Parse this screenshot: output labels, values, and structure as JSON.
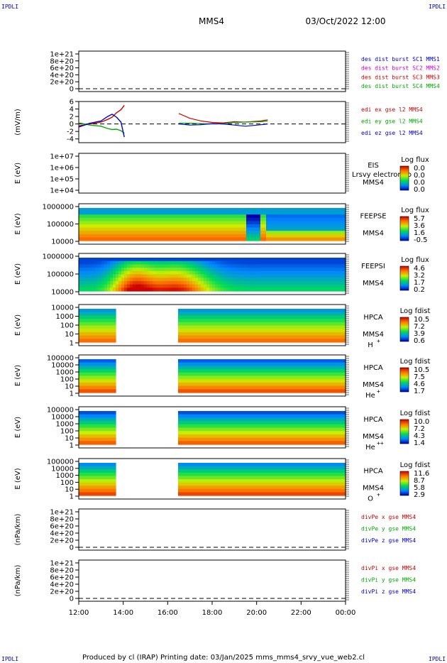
{
  "header": {
    "spacecraft": "MMS4",
    "datetime": "03/Oct/2022 12:00"
  },
  "corners": {
    "tl": "IPDLI",
    "tr": "IPDLI",
    "bl": "IPDLI",
    "br": "IPDLI"
  },
  "footer": {
    "text": "Produced by cl (IRAP)   Printing date: 03/Jan/2025   mms_mms4_srvy_vue_web2.cl"
  },
  "colors": {
    "mms1": "#0000cc",
    "mms2": "#cc00cc",
    "mms3": "#cc0000",
    "mms4": "#00aa00",
    "x": "#cc0000",
    "y": "#00aa00",
    "z": "#0000cc"
  },
  "x_axis": {
    "ticks": [
      "12:00",
      "14:00",
      "16:00",
      "18:00",
      "20:00",
      "22:00",
      "00:00"
    ],
    "range_hours": [
      12,
      24
    ]
  },
  "data_gap_hours": [
    13.72,
    16.42
  ],
  "chart_data": [
    {
      "id": "panel1",
      "type": "line",
      "yticks": [
        "1e+21",
        "8e+20",
        "6e+20",
        "4e+20",
        "2e+20",
        "0"
      ],
      "legend": [
        "des dist burst SC1 MMS1",
        "des dist burst SC2 MMS2",
        "des dist burst SC3 MMS3",
        "des dist burst SC4 MMS4"
      ],
      "series": []
    },
    {
      "id": "panel2",
      "type": "line",
      "ylabel": "(mV/m)",
      "ylim": [
        -5,
        6
      ],
      "yticks": [
        "6",
        "4",
        "2",
        "0",
        "-2",
        "-4"
      ],
      "legend": [
        "edi ex gse l2 MMS4",
        "edi ey gse l2 MMS4",
        "edi ez gse l2 MMS4"
      ],
      "series": [
        {
          "name": "edi ex gse l2 MMS4",
          "x": [
            12.0,
            12.5,
            13.0,
            13.3,
            13.5,
            13.7,
            13.9,
            14.05,
            16.5,
            17.0,
            17.5,
            18.0,
            18.5,
            19.0,
            19.5,
            20.2,
            20.5
          ],
          "y": [
            -0.5,
            0.0,
            0.5,
            1.2,
            1.8,
            3.0,
            3.8,
            5.0,
            2.8,
            1.5,
            0.8,
            0.4,
            0.3,
            0.6,
            0.5,
            0.8,
            1.1
          ]
        },
        {
          "name": "edi ey gse l2 MMS4",
          "x": [
            12.0,
            12.5,
            13.0,
            13.3,
            13.5,
            13.7,
            13.9,
            14.05,
            16.5,
            17.0,
            17.5,
            18.0,
            18.5,
            19.0,
            19.5,
            20.2,
            20.5
          ],
          "y": [
            0.3,
            -0.3,
            -0.6,
            -1.2,
            -1.5,
            -1.4,
            -1.8,
            -2.5,
            0.2,
            0.2,
            0.1,
            0.0,
            0.1,
            0.4,
            0.5,
            0.6,
            0.8
          ]
        },
        {
          "name": "edi ez gse l2 MMS4",
          "x": [
            12.0,
            12.5,
            13.0,
            13.3,
            13.5,
            13.7,
            13.9,
            14.05,
            16.5,
            17.0,
            17.5,
            18.0,
            18.5,
            19.0,
            19.5,
            20.2,
            20.5
          ],
          "y": [
            -0.8,
            0.2,
            0.8,
            2.0,
            2.6,
            1.8,
            0.5,
            -3.5,
            0.0,
            -0.3,
            -0.2,
            0.1,
            0.0,
            -0.3,
            -0.6,
            -0.2,
            0.0
          ]
        }
      ]
    },
    {
      "id": "panel3",
      "type": "heatmap",
      "ylabel": "E (eV)",
      "yticks": [
        "1e+07",
        "1e+06",
        "1e+05",
        "1e+04"
      ],
      "instrument": "EIS",
      "subtitle": "Lrsvy electron to",
      "spacecraft": "MMS4",
      "cbar_title": "Log flux",
      "cbar_ticks": [
        "0.0",
        "0.0",
        "0.0",
        "0.0"
      ]
    },
    {
      "id": "panel4",
      "type": "heatmap",
      "ylabel": "E (eV)",
      "yticks": [
        "1000000",
        "100000",
        "10000"
      ],
      "instrument": "FEEPSE",
      "spacecraft": "MMS4",
      "cbar_title": "Log flux",
      "cbar_ticks": [
        "5.7",
        "3.6",
        "1.6",
        "-0.5"
      ]
    },
    {
      "id": "panel5",
      "type": "heatmap",
      "ylabel": "E (eV)",
      "yticks": [
        "1000000",
        "100000",
        "10000"
      ],
      "instrument": "FEEPSI",
      "spacecraft": "MMS4",
      "cbar_title": "Log flux",
      "cbar_ticks": [
        "4.6",
        "3.2",
        "1.7",
        "0.2"
      ]
    },
    {
      "id": "panel6",
      "type": "heatmap",
      "ylabel": "E (eV)",
      "yticks": [
        "10000",
        "1000",
        "100",
        "10",
        "1"
      ],
      "instrument": "HPCA",
      "spacecraft": "MMS4",
      "species": "H",
      "charge": "+",
      "cbar_title": "Log fdist",
      "cbar_ticks": [
        "10.5",
        "7.2",
        "3.9",
        "0.6"
      ]
    },
    {
      "id": "panel7",
      "type": "heatmap",
      "ylabel": "E (eV)",
      "yticks": [
        "100000",
        "10000",
        "1000",
        "100",
        "10",
        "1"
      ],
      "instrument": "HPCA",
      "spacecraft": "MMS4",
      "species": "He",
      "charge": "+",
      "cbar_title": "Log fdist",
      "cbar_ticks": [
        "10.5",
        "7.5",
        "4.6",
        "1.7"
      ]
    },
    {
      "id": "panel8",
      "type": "heatmap",
      "ylabel": "E (eV)",
      "yticks": [
        "100000",
        "10000",
        "1000",
        "100",
        "10",
        "1"
      ],
      "instrument": "HPCA",
      "spacecraft": "MMS4",
      "species": "He",
      "charge": "++",
      "cbar_title": "Log fdist",
      "cbar_ticks": [
        "10.0",
        "7.2",
        "4.3",
        "1.4"
      ]
    },
    {
      "id": "panel9",
      "type": "heatmap",
      "ylabel": "E (eV)",
      "yticks": [
        "100000",
        "10000",
        "1000",
        "100",
        "10",
        "1"
      ],
      "instrument": "HPCA",
      "spacecraft": "MMS4",
      "species": "O",
      "charge": "+",
      "cbar_title": "Log fdist",
      "cbar_ticks": [
        "11.6",
        "8.7",
        "5.8",
        "2.9"
      ]
    },
    {
      "id": "panel10",
      "type": "line",
      "ylabel": "(nPa/km)",
      "yticks": [
        "1e+21",
        "8e+20",
        "6e+20",
        "4e+20",
        "2e+20",
        "0"
      ],
      "legend": [
        "divPe x gse MMS4",
        "divPe y gse MMS4",
        "divPe z gse MMS4"
      ],
      "series": []
    },
    {
      "id": "panel11",
      "type": "line",
      "ylabel": "(nPa/km)",
      "yticks": [
        "1e+21",
        "8e+20",
        "6e+20",
        "4e+20",
        "2e+20",
        "0"
      ],
      "legend": [
        "divPi x gse MMS4",
        "divPi y gse MMS4",
        "divPi z gse MMS4"
      ],
      "series": []
    }
  ]
}
